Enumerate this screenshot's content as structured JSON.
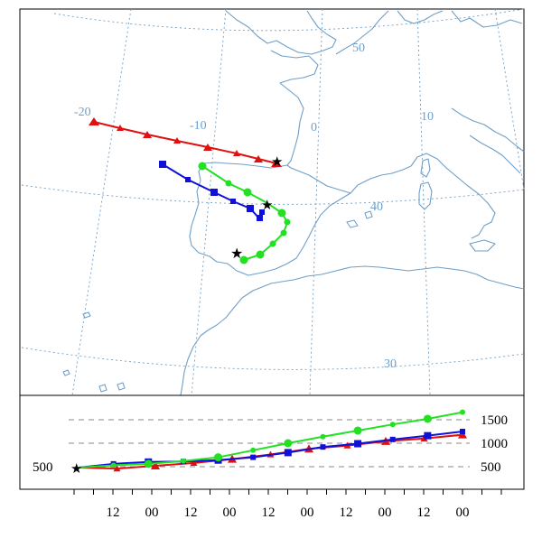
{
  "map": {
    "graticule_labels": {
      "lon_minus20": "-20",
      "lon_minus10": "-10",
      "lon_0": "0",
      "lon_10": "10",
      "lat_50": "50",
      "lat_40": "40",
      "lat_30": "30"
    },
    "graticule_color": "#6f9fc8",
    "coast_color": "#6f9fc8",
    "trajectories": [
      {
        "color": "#e01010",
        "marker": "triangle",
        "end_marker": "star"
      },
      {
        "color": "#1010d8",
        "marker": "square",
        "end_marker": "star"
      },
      {
        "color": "#22e022",
        "marker": "circle",
        "end_marker": "star"
      }
    ]
  },
  "height_panel": {
    "right_ticks": [
      "1500",
      "1000",
      "500"
    ],
    "left_label": "500",
    "time_labels": [
      "12",
      "00",
      "12",
      "00",
      "12",
      "00",
      "12",
      "00",
      "12",
      "00"
    ]
  },
  "chart_data": {
    "type": "line",
    "ylabel": "",
    "y_ticks": [
      500,
      1000,
      1500
    ],
    "x_tick_labels": [
      "12",
      "00",
      "12",
      "00",
      "12",
      "00",
      "12",
      "00",
      "12",
      "00"
    ],
    "series": [
      {
        "color": "#e01010",
        "marker": "triangle",
        "values": [
          480,
          460,
          520,
          580,
          660,
          760,
          880,
          950,
          1040,
          1100,
          1180
        ]
      },
      {
        "color": "#1010d8",
        "marker": "square",
        "values": [
          480,
          560,
          600,
          610,
          640,
          700,
          800,
          920,
          990,
          1080,
          1160,
          1250
        ]
      },
      {
        "color": "#22e022",
        "marker": "circle",
        "values": [
          480,
          530,
          560,
          620,
          700,
          850,
          1000,
          1140,
          1270,
          1400,
          1520,
          1660
        ]
      }
    ]
  }
}
